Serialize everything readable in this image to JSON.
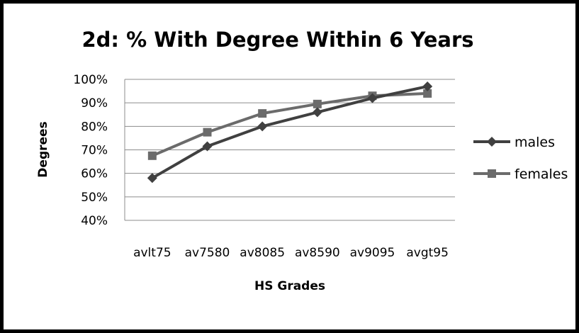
{
  "chart_data": {
    "type": "line",
    "title": "2d: % With Degree Within 6 Years",
    "xlabel": "HS Grades",
    "ylabel": "Degrees",
    "categories": [
      "avlt75",
      "av7580",
      "av8085",
      "av8590",
      "av9095",
      "avgt95"
    ],
    "ylim": [
      40,
      100
    ],
    "yticks": [
      "40%",
      "50%",
      "60%",
      "70%",
      "80%",
      "90%",
      "100%"
    ],
    "grid": true,
    "legend_position": "right",
    "series": [
      {
        "name": "males",
        "values": [
          58,
          71.5,
          80,
          86,
          92,
          97
        ],
        "color": "#404040",
        "marker": "diamond"
      },
      {
        "name": "females",
        "values": [
          67.5,
          77.5,
          85.5,
          89.5,
          93,
          94
        ],
        "color": "#6b6b6b",
        "marker": "square"
      }
    ]
  }
}
